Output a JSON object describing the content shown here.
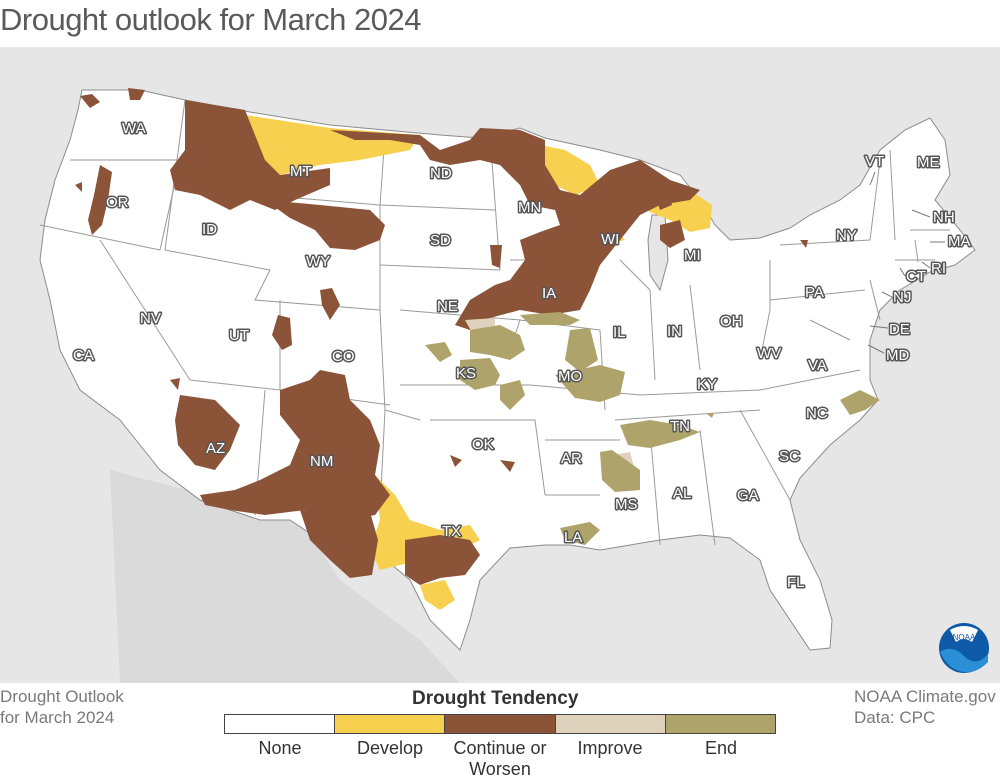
{
  "title": "Drought outlook for March 2024",
  "footer_left": {
    "line1": "Drought Outlook",
    "line2": "for March 2024"
  },
  "footer_right": {
    "line1": "NOAA Climate.gov",
    "line2": "Data: CPC"
  },
  "logo_text": "NOAA",
  "legend": {
    "title": "Drought Tendency",
    "items": [
      {
        "label": "None",
        "color": "#ffffff"
      },
      {
        "label": "Develop",
        "color": "#f7d04f"
      },
      {
        "label": "Continue or Worsen",
        "color": "#8b5338"
      },
      {
        "label": "Improve",
        "color": "#dfd2bc"
      },
      {
        "label": "End",
        "color": "#aea36a"
      }
    ],
    "label_lines": [
      "None",
      "Develop",
      "Continue or",
      "Worsen",
      "Improve",
      "End"
    ]
  },
  "colors": {
    "land": "#ffffff",
    "background": "#e6e6e6",
    "borders": "#8c8c8c",
    "neighbors": "#dcdcdc"
  },
  "states": [
    "WA",
    "OR",
    "CA",
    "ID",
    "NV",
    "MT",
    "WY",
    "UT",
    "AZ",
    "CO",
    "NM",
    "ND",
    "SD",
    "NE",
    "KS",
    "OK",
    "TX",
    "MN",
    "IA",
    "MO",
    "AR",
    "LA",
    "WI",
    "IL",
    "MI",
    "IN",
    "OH",
    "KY",
    "TN",
    "MS",
    "AL",
    "GA",
    "FL",
    "SC",
    "NC",
    "VA",
    "WV",
    "PA",
    "NY",
    "VT",
    "NH",
    "ME",
    "MA",
    "RI",
    "CT",
    "NJ",
    "DE",
    "MD"
  ]
}
